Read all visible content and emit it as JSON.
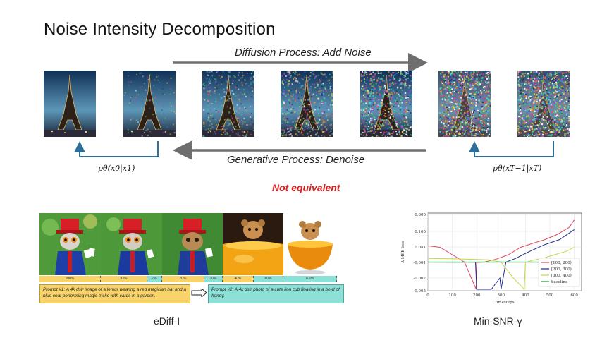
{
  "title": "Noise Intensity Decomposition",
  "diffusion_label": "Diffusion Process: Add Noise",
  "generative_label": "Generative Process: Denoise",
  "formula_left": "pθ(x0|x1)",
  "formula_right": "pθ(xT−1|xT)",
  "not_equivalent": "Not equivalent",
  "noise_levels": [
    0.0,
    0.12,
    0.35,
    0.55,
    0.75,
    0.95,
    0.97
  ],
  "ediff": {
    "caption": "eDiff-I",
    "segments": [
      {
        "label": "100%",
        "color": "#f7d36a"
      },
      {
        "label": "93%",
        "color": "#f7d36a"
      },
      {
        "label": "7%",
        "color": "#8de0d6"
      },
      {
        "label": "70%",
        "color": "#f7d36a"
      },
      {
        "label": "30%",
        "color": "#8de0d6"
      },
      {
        "label": "40%",
        "color": "#f7d36a"
      },
      {
        "label": "60%",
        "color": "#8de0d6"
      },
      {
        "label": "100%",
        "color": "#8de0d6"
      }
    ],
    "prompt1": "Prompt #1: A 4k dslr image of a lemur wearing a red magician hat and a blue coat performing magic tricks with cards in a garden.",
    "prompt2": "Prompt #2: A 4k dslr photo of a cute lion cub floating in a bowl of honey."
  },
  "chart_data": {
    "type": "line",
    "title": "",
    "xlabel": "timesteps",
    "ylabel": "Δ MSE loss",
    "x_ticks": [
      0,
      100,
      200,
      300,
      400,
      500,
      600
    ],
    "y_ticks": [
      "0.305",
      "0.165",
      "0.041",
      "-0.001",
      "-0.002",
      "-0.003"
    ],
    "xlim": [
      0,
      630
    ],
    "grid": true,
    "legend": "bottom-right",
    "series": [
      {
        "name": "[100, 200)",
        "color": "#d9485f",
        "points": [
          [
            0,
            0.05
          ],
          [
            50,
            0.04
          ],
          [
            100,
            0.02
          ],
          [
            150,
            0.0
          ],
          [
            198,
            -0.008
          ],
          [
            200,
            -0.001
          ],
          [
            230,
            0.0
          ],
          [
            280,
            0.008
          ],
          [
            330,
            0.02
          ],
          [
            380,
            0.04
          ],
          [
            430,
            0.07
          ],
          [
            480,
            0.1
          ],
          [
            530,
            0.14
          ],
          [
            580,
            0.2
          ],
          [
            600,
            0.26
          ]
        ]
      },
      {
        "name": "[200, 300)",
        "color": "#1f2a8a",
        "points": [
          [
            0,
            0.0
          ],
          [
            100,
            -0.0002
          ],
          [
            195,
            -0.0003
          ],
          [
            200,
            -0.007
          ],
          [
            220,
            -0.004
          ],
          [
            260,
            -0.003
          ],
          [
            295,
            -0.002
          ],
          [
            300,
            -0.005
          ],
          [
            320,
            0.0
          ],
          [
            360,
            0.01
          ],
          [
            420,
            0.03
          ],
          [
            480,
            0.06
          ],
          [
            540,
            0.1
          ],
          [
            600,
            0.18
          ]
        ]
      },
      {
        "name": "[300, 400)",
        "color": "#c9d24a",
        "points": [
          [
            0,
            0.01
          ],
          [
            100,
            0.009
          ],
          [
            200,
            0.007
          ],
          [
            250,
            0.006
          ],
          [
            300,
            0.0
          ],
          [
            350,
            -0.002
          ],
          [
            395,
            -0.004
          ],
          [
            400,
            -0.001
          ],
          [
            430,
            0.005
          ],
          [
            470,
            0.01
          ],
          [
            520,
            0.02
          ],
          [
            570,
            0.03
          ],
          [
            600,
            0.04
          ]
        ]
      },
      {
        "name": "baseline",
        "color": "#2e8b3e",
        "points": [
          [
            0,
            0.0
          ],
          [
            600,
            0.0
          ]
        ]
      }
    ],
    "caption": "Min-SNR-γ"
  }
}
